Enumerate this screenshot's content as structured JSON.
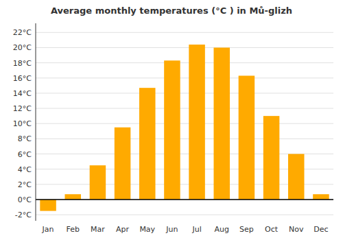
{
  "chart_data": {
    "type": "bar",
    "title": "Average monthly temperatures (°C ) in Mů-glizh",
    "categories": [
      "Jan",
      "Feb",
      "Mar",
      "Apr",
      "May",
      "Jun",
      "Jul",
      "Aug",
      "Sep",
      "Oct",
      "Nov",
      "Dec"
    ],
    "values": [
      -1.5,
      0.7,
      4.5,
      9.5,
      14.7,
      18.3,
      20.4,
      20.0,
      16.3,
      11.0,
      6.0,
      0.7
    ],
    "color": "#FFAA00",
    "ylim": [
      -2.8,
      23.2
    ],
    "yticks": [
      {
        "value": -2,
        "label": "-2°C"
      },
      {
        "value": 0,
        "label": "0°C"
      },
      {
        "value": 2,
        "label": "2°C"
      },
      {
        "value": 4,
        "label": "4°C"
      },
      {
        "value": 6,
        "label": "6°C"
      },
      {
        "value": 8,
        "label": "8°C"
      },
      {
        "value": 10,
        "label": "10°C"
      },
      {
        "value": 12,
        "label": "12°C"
      },
      {
        "value": 14,
        "label": "14°C"
      },
      {
        "value": 16,
        "label": "16°C"
      },
      {
        "value": 18,
        "label": "18°C"
      },
      {
        "value": 20,
        "label": "20°C"
      },
      {
        "value": 22,
        "label": "22°C"
      }
    ],
    "grid": true
  }
}
